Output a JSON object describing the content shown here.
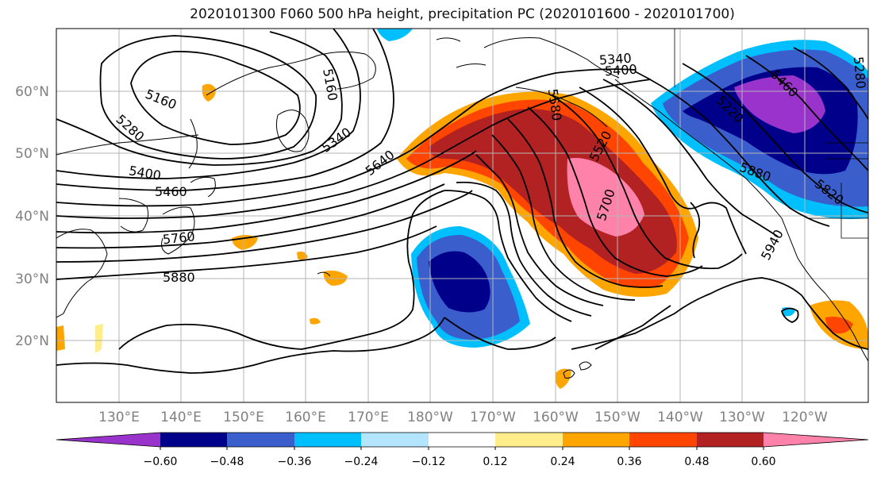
{
  "title": "2020101300 F060 500 hPa height, precipitation PC (2020101600 - 2020101700)",
  "lat_labels": [
    "60°N",
    "50°N",
    "40°N",
    "30°N",
    "20°N"
  ],
  "lon_labels": [
    "130°E",
    "140°E",
    "150°E",
    "160°E",
    "170°E",
    "180°W",
    "170°W",
    "160°W",
    "150°W",
    "140°W",
    "130°W",
    "120°W"
  ],
  "contour_labels": [
    "5340",
    "5400",
    "5160",
    "5280",
    "5400",
    "5460",
    "5760",
    "5880",
    "5640",
    "5340",
    "5160",
    "5580",
    "5520",
    "5700",
    "5940",
    "5460",
    "5880",
    "5820",
    "5280",
    "5220"
  ],
  "colorbar": {
    "ticks": [
      "−0.60",
      "−0.48",
      "−0.36",
      "−0.24",
      "−0.12",
      "0.12",
      "0.24",
      "0.36",
      "0.48",
      "0.60"
    ],
    "colors": [
      "#9933cc",
      "#00008b",
      "#3a5fcd",
      "#00bfff",
      "#b3e5fc",
      "#ffffff",
      "#ffec8b",
      "#ffa500",
      "#ff4500",
      "#b22222",
      "#ff82ab"
    ]
  }
}
